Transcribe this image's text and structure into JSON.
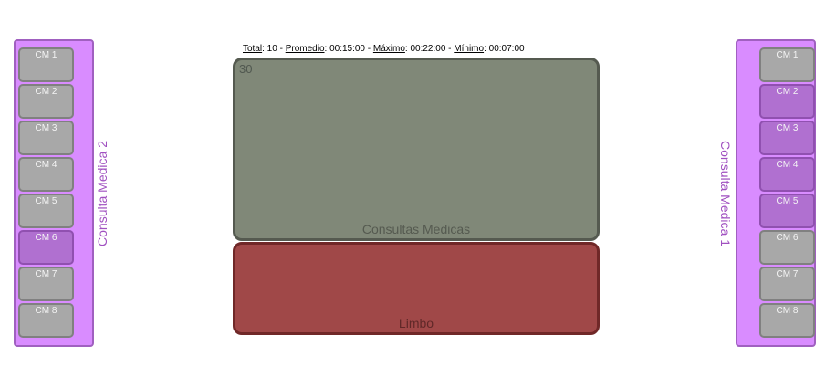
{
  "left_panel": {
    "label": "Consulta Medica 2",
    "slots": [
      {
        "label": "CM 1",
        "active": false
      },
      {
        "label": "CM 2",
        "active": false
      },
      {
        "label": "CM 3",
        "active": false
      },
      {
        "label": "CM 4",
        "active": false
      },
      {
        "label": "CM 5",
        "active": false
      },
      {
        "label": "CM 6",
        "active": true
      },
      {
        "label": "CM 7",
        "active": false
      },
      {
        "label": "CM 8",
        "active": false
      }
    ]
  },
  "right_panel": {
    "label": "Consulta Medica 1",
    "slots": [
      {
        "label": "CM 1",
        "active": false
      },
      {
        "label": "CM 2",
        "active": true
      },
      {
        "label": "CM 3",
        "active": true
      },
      {
        "label": "CM 4",
        "active": true
      },
      {
        "label": "CM 5",
        "active": true
      },
      {
        "label": "CM 6",
        "active": false
      },
      {
        "label": "CM 7",
        "active": false
      },
      {
        "label": "CM 8",
        "active": false
      }
    ]
  },
  "stats": {
    "total_label": "Total",
    "total_value": ": 10 - ",
    "promedio_label": "Promedio",
    "promedio_value": ": 00:15:00 - ",
    "maximo_label": "Máximo",
    "maximo_value": ": 00:22:00 - ",
    "minimo_label": "Mínimo",
    "minimo_value": ": 00:07:00"
  },
  "main_box": {
    "count": "30",
    "title": "Consultas Medicas"
  },
  "limbo_box": {
    "title": "Limbo"
  },
  "colors": {
    "slot_inactive": "#a8a8a8",
    "slot_active": "#b070d0",
    "panel": "#d98cff",
    "main": "#808878",
    "limbo": "#a04848"
  }
}
